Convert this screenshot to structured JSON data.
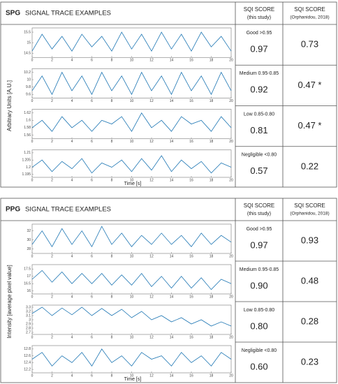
{
  "panels": [
    {
      "label": "SPG",
      "title": "SIGNAL TRACE EXAMPLES",
      "col1": "SQI SCORE",
      "col1_sub": "(this study)",
      "col2": "SQI SCORE",
      "col2_sub": "(Orphanidou, 2018)",
      "y_label": "Arbitrary Units [A.U.]",
      "x_label": "Time [s]",
      "rows": [
        {
          "category": "Good >0.95",
          "score": "0.97",
          "orphanidou": "0.73"
        },
        {
          "category": "Medium 0.95-0.85",
          "score": "0.92",
          "orphanidou": "0.47 *"
        },
        {
          "category": "Low 0.85-0.80",
          "score": "0.81",
          "orphanidou": "0.47 *"
        },
        {
          "category": "Negligible <0.80",
          "score": "0.57",
          "orphanidou": "0.22"
        }
      ]
    },
    {
      "label": "PPG",
      "title": "SIGNAL TRACE EXAMPLES",
      "col1": "SQI SCORE",
      "col1_sub": "(this study)",
      "col2": "SQI SCORE",
      "col2_sub": "(Orphanidou, 2018)",
      "y_label": "Intensity [average pixel value]",
      "x_label": "Time [s]",
      "rows": [
        {
          "category": "Good >0.95",
          "score": "0.97",
          "orphanidou": "0.93"
        },
        {
          "category": "Medium 0.95-0.85",
          "score": "0.90",
          "orphanidou": "0.48"
        },
        {
          "category": "Low 0.85-0.80",
          "score": "0.80",
          "orphanidou": "0.28"
        },
        {
          "category": "Negligible <0.80",
          "score": "0.60",
          "orphanidou": "0.23"
        }
      ]
    }
  ],
  "chart_data": [
    {
      "type": "line",
      "color": "#1f77b4",
      "x": [
        0,
        1,
        2,
        3,
        4,
        5,
        6,
        7,
        8,
        9,
        10,
        11,
        12,
        13,
        14,
        15,
        16,
        17,
        18,
        19,
        20
      ],
      "values": [
        14.6,
        15.4,
        14.7,
        15.3,
        14.6,
        15.4,
        14.8,
        15.3,
        14.6,
        15.5,
        14.7,
        15.4,
        14.6,
        15.5,
        14.7,
        15.4,
        14.6,
        15.5,
        14.8,
        15.3,
        14.6
      ],
      "xlim": [
        0,
        20
      ],
      "xticks": [
        0,
        2,
        4,
        6,
        8,
        10,
        12,
        14,
        16,
        18,
        20
      ],
      "ylim": [
        14.3,
        15.7
      ],
      "yticks": [
        14.5,
        15,
        15.5
      ]
    },
    {
      "type": "line",
      "color": "#1f77b4",
      "x": [
        0,
        1,
        2,
        3,
        4,
        5,
        6,
        7,
        8,
        9,
        10,
        11,
        12,
        13,
        14,
        15,
        16,
        17,
        18,
        19,
        20
      ],
      "values": [
        9.7,
        10.1,
        9.6,
        10.2,
        9.7,
        10.1,
        9.6,
        10.2,
        9.7,
        10.1,
        9.6,
        10.2,
        9.7,
        10.1,
        9.6,
        10.2,
        9.7,
        10.1,
        9.6,
        10.2,
        9.7
      ],
      "xlim": [
        0,
        20
      ],
      "xticks": [
        0,
        2,
        4,
        6,
        8,
        10,
        12,
        14,
        16,
        18,
        20
      ],
      "ylim": [
        9.5,
        10.3
      ],
      "yticks": [
        9.6,
        9.8,
        10,
        10.2
      ]
    },
    {
      "type": "line",
      "color": "#1f77b4",
      "x": [
        0,
        1,
        2,
        3,
        4,
        5,
        6,
        7,
        8,
        9,
        10,
        11,
        12,
        13,
        14,
        15,
        16,
        17,
        18,
        19,
        20
      ],
      "values": [
        1.58,
        1.6,
        1.57,
        1.61,
        1.58,
        1.6,
        1.57,
        1.6,
        1.59,
        1.61,
        1.57,
        1.62,
        1.58,
        1.6,
        1.57,
        1.61,
        1.59,
        1.6,
        1.57,
        1.61,
        1.58
      ],
      "xlim": [
        0,
        20
      ],
      "xticks": [
        0,
        2,
        4,
        6,
        8,
        10,
        12,
        14,
        16,
        18,
        20
      ],
      "ylim": [
        1.55,
        1.63
      ],
      "yticks": [
        1.56,
        1.58,
        1.6,
        1.62
      ]
    },
    {
      "type": "line",
      "color": "#1f77b4",
      "x": [
        0,
        1,
        2,
        3,
        4,
        5,
        6,
        7,
        8,
        9,
        10,
        11,
        12,
        13,
        14,
        15,
        16,
        17,
        18,
        19,
        20
      ],
      "values": [
        1.2,
        1.205,
        1.197,
        1.204,
        1.199,
        1.206,
        1.196,
        1.203,
        1.2,
        1.205,
        1.197,
        1.206,
        1.198,
        1.208,
        1.197,
        1.205,
        1.199,
        1.204,
        1.196,
        1.203,
        1.2
      ],
      "xlim": [
        0,
        20
      ],
      "xticks": [
        0,
        2,
        4,
        6,
        8,
        10,
        12,
        14,
        16,
        18,
        20
      ],
      "ylim": [
        1.193,
        1.212
      ],
      "yticks": [
        1.195,
        1.2,
        1.205,
        1.21
      ]
    },
    {
      "type": "line",
      "color": "#1f77b4",
      "x": [
        0,
        1,
        2,
        3,
        4,
        5,
        6,
        7,
        8,
        9,
        10,
        11,
        12,
        13,
        14,
        15,
        16,
        17,
        18,
        19,
        20
      ],
      "values": [
        29,
        32,
        28.5,
        32.5,
        29,
        32,
        28.5,
        33,
        29,
        31.5,
        28.5,
        31,
        29,
        31.5,
        29,
        31,
        28.5,
        31.5,
        29,
        31,
        29.5
      ],
      "xlim": [
        0,
        20
      ],
      "xticks": [
        0,
        2,
        4,
        6,
        8,
        10,
        12,
        14,
        16,
        18,
        20
      ],
      "ylim": [
        27,
        33.5
      ],
      "yticks": [
        28,
        30,
        32
      ]
    },
    {
      "type": "line",
      "color": "#1f77b4",
      "x": [
        0,
        1,
        2,
        3,
        4,
        5,
        6,
        7,
        8,
        9,
        10,
        11,
        12,
        13,
        14,
        15,
        16,
        17,
        18,
        19,
        20
      ],
      "values": [
        16.8,
        17.4,
        16.6,
        17.3,
        16.5,
        17.2,
        16.5,
        17.2,
        16.4,
        17.1,
        16.4,
        17.2,
        16.3,
        17,
        16.2,
        17,
        16.2,
        16.9,
        16.1,
        16.8,
        16.5
      ],
      "xlim": [
        0,
        20
      ],
      "xticks": [
        0,
        2,
        4,
        6,
        8,
        10,
        12,
        14,
        16,
        18,
        20
      ],
      "ylim": [
        15.8,
        17.8
      ],
      "yticks": [
        16,
        16.5,
        17,
        17.5
      ]
    },
    {
      "type": "line",
      "color": "#1f77b4",
      "x": [
        0,
        1,
        2,
        3,
        4,
        5,
        6,
        7,
        8,
        9,
        10,
        11,
        12,
        13,
        14,
        15,
        16,
        17,
        18,
        19,
        20
      ],
      "values": [
        3.15,
        3.3,
        3.1,
        3.28,
        3.12,
        3.3,
        3.1,
        3.27,
        3.1,
        3.25,
        3.05,
        3.2,
        3,
        3.1,
        2.95,
        3.05,
        2.9,
        3,
        2.85,
        2.95,
        2.85
      ],
      "xlim": [
        0,
        20
      ],
      "xticks": [
        0,
        2,
        4,
        6,
        8,
        10,
        12,
        14,
        16,
        18,
        20
      ],
      "ylim": [
        2.65,
        3.35
      ],
      "yticks": [
        2.7,
        2.8,
        2.9,
        3,
        3.1,
        3.2,
        3.3
      ]
    },
    {
      "type": "line",
      "color": "#1f77b4",
      "x": [
        0,
        1,
        2,
        3,
        4,
        5,
        6,
        7,
        8,
        9,
        10,
        11,
        12,
        13,
        14,
        15,
        16,
        17,
        18,
        19,
        20
      ],
      "values": [
        12.5,
        12.7,
        12.3,
        12.6,
        12.4,
        12.7,
        12.3,
        12.8,
        12.4,
        12.6,
        12.3,
        12.7,
        12.5,
        12.6,
        12.3,
        12.7,
        12.4,
        12.6,
        12.3,
        12.7,
        12.5
      ],
      "xlim": [
        0,
        20
      ],
      "xticks": [
        0,
        2,
        4,
        6,
        8,
        10,
        12,
        14,
        16,
        18,
        20
      ],
      "ylim": [
        12.1,
        12.9
      ],
      "yticks": [
        12.2,
        12.4,
        12.6,
        12.8
      ]
    }
  ]
}
